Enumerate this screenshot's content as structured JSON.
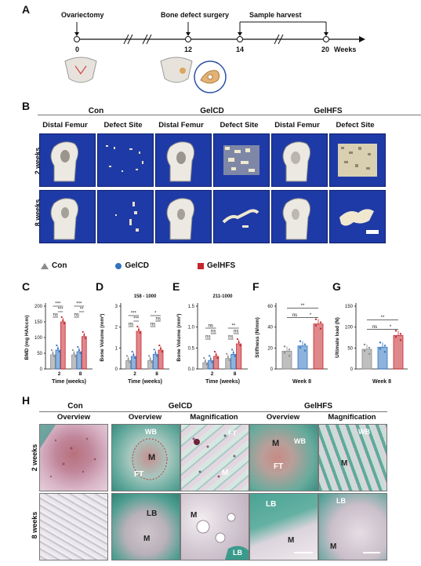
{
  "panel_letters": [
    "A",
    "B",
    "C",
    "D",
    "E",
    "F",
    "G",
    "H"
  ],
  "timeline": {
    "events": [
      "Ovariectomy",
      "Bone defect surgery",
      "Sample harvest"
    ],
    "ticks": [
      "0",
      "12",
      "14",
      "20"
    ],
    "unit": "Weeks"
  },
  "ct": {
    "groups": [
      "Con",
      "GelCD",
      "GelHFS"
    ],
    "columns": [
      "Distal Femur",
      "Defect Site"
    ],
    "rows": [
      "2 weeks",
      "8 weeks"
    ]
  },
  "legend": {
    "items": [
      {
        "name": "Con",
        "color": "#8a8a8a"
      },
      {
        "name": "GelCD",
        "color": "#2f74c0"
      },
      {
        "name": "GelHFS",
        "color": "#c4262e"
      }
    ]
  },
  "chart_data": [
    {
      "panel": "C",
      "type": "bar",
      "ylabel": "BMD (mg HA/ccm)",
      "xlabel": "Time (weeks)",
      "categories": [
        "2",
        "8"
      ],
      "ylim": [
        0,
        200
      ],
      "yticks": [
        "0",
        "50",
        "100",
        "150",
        "200"
      ],
      "series": [
        {
          "name": "Con",
          "values": [
            45,
            45
          ]
        },
        {
          "name": "GelCD",
          "values": [
            60,
            55
          ]
        },
        {
          "name": "GelHFS",
          "values": [
            150,
            103
          ]
        }
      ],
      "sig": [
        "***",
        "***",
        "ns",
        "***",
        "**",
        "ns"
      ]
    },
    {
      "panel": "D",
      "type": "bar",
      "title": "158 - 1000",
      "ylabel": "Bone Volume (mm³)",
      "xlabel": "Time (weeks)",
      "categories": [
        "2",
        "8"
      ],
      "ylim": [
        0,
        3
      ],
      "yticks": [
        "0",
        "1",
        "2",
        "3"
      ],
      "series": [
        {
          "name": "Con",
          "values": [
            0.4,
            0.4
          ]
        },
        {
          "name": "GelCD",
          "values": [
            0.6,
            0.7
          ]
        },
        {
          "name": "GelHFS",
          "values": [
            1.8,
            0.9
          ]
        }
      ],
      "sig": [
        "***",
        "***",
        "ns",
        "*",
        "ns",
        "ns"
      ]
    },
    {
      "panel": "E",
      "type": "bar",
      "title": "211-1000",
      "ylabel": "Bone Volume (mm³)",
      "xlabel": "Time (weeks)",
      "categories": [
        "2",
        "8"
      ],
      "ylim": [
        0,
        1.5
      ],
      "yticks": [
        "0.0",
        "0.5",
        "1.0",
        "1.5"
      ],
      "series": [
        {
          "name": "Con",
          "values": [
            0.15,
            0.25
          ]
        },
        {
          "name": "GelCD",
          "values": [
            0.2,
            0.35
          ]
        },
        {
          "name": "GelHFS",
          "values": [
            0.3,
            0.6
          ]
        }
      ],
      "sig": [
        "ns",
        "ns",
        "ns",
        "**",
        "ns",
        "ns"
      ]
    },
    {
      "panel": "F",
      "type": "bar",
      "ylabel": "Stiffness (N/mm)",
      "xlabel": "Week 8",
      "categories": [
        "Con",
        "GelCD",
        "GelHFS"
      ],
      "ylim": [
        0,
        60
      ],
      "yticks": [
        "0",
        "20",
        "40",
        "60"
      ],
      "values": [
        17,
        22,
        43
      ],
      "sig": [
        "**",
        "ns",
        "*"
      ]
    },
    {
      "panel": "G",
      "type": "bar",
      "ylabel": "Ultimate load (N)",
      "xlabel": "Week 8",
      "categories": [
        "Con",
        "GelCD",
        "GelHFS"
      ],
      "ylim": [
        0,
        150
      ],
      "yticks": [
        "0",
        "50",
        "100",
        "150"
      ],
      "values": [
        47,
        52,
        80
      ],
      "sig": [
        "**",
        "ns",
        "*"
      ]
    }
  ],
  "histology": {
    "groups": [
      "Con",
      "GelCD",
      "GelHFS"
    ],
    "subheaders": [
      "Overview",
      "Overview",
      "Magnification",
      "Overview",
      "Magnification"
    ],
    "rows": [
      "2 weeks",
      "8 weeks"
    ],
    "labels": {
      "gelcd_2w_ov": [
        "WB",
        "M",
        "FT"
      ],
      "gelcd_2w_mag": [
        "FT",
        "M"
      ],
      "gelhfs_2w_ov": [
        "WB",
        "M",
        "FT"
      ],
      "gelhfs_2w_mag": [
        "WB",
        "M"
      ],
      "gelcd_8w_ov": [
        "LB",
        "M"
      ],
      "gelcd_8w_mag": [
        "M",
        "LB"
      ],
      "gelhfs_8w_ov": [
        "LB",
        "M"
      ],
      "gelhfs_8w_mag": [
        "LB",
        "M"
      ]
    }
  }
}
